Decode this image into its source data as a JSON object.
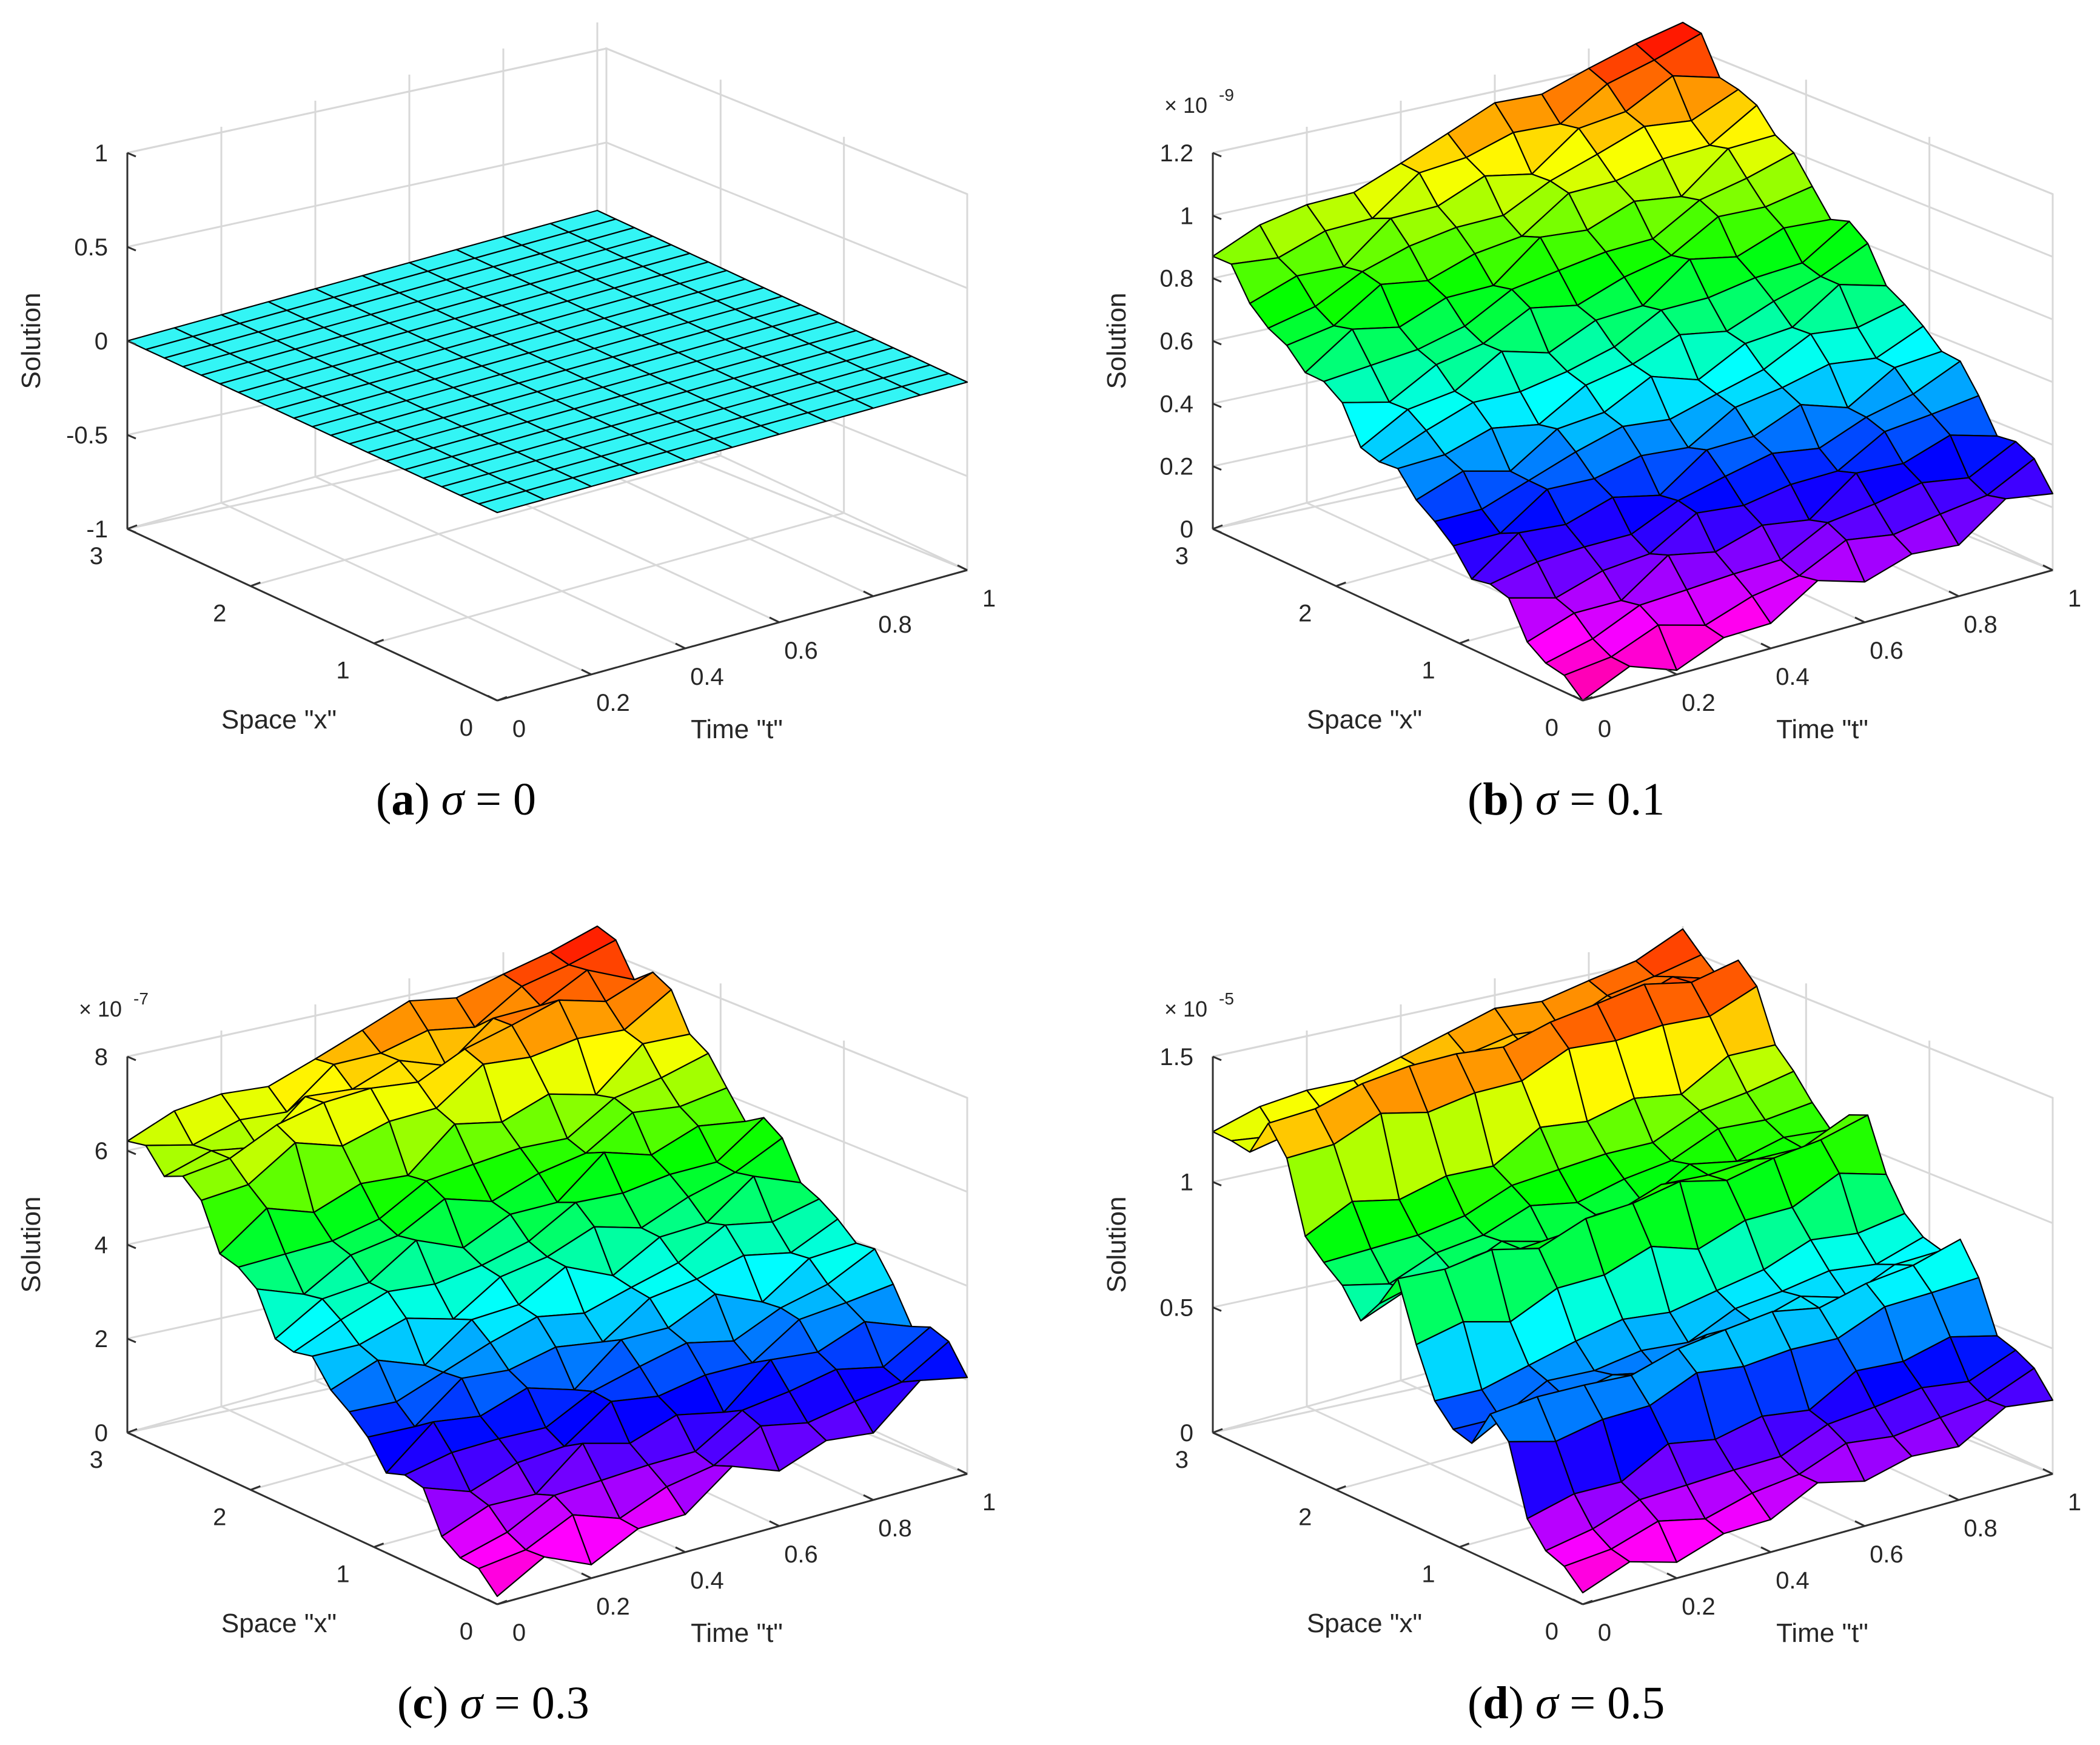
{
  "figure": {
    "captions": [
      {
        "letter": "a",
        "sigma": "σ",
        "eq": " = 0"
      },
      {
        "letter": "b",
        "sigma": "σ",
        "eq": " = 0.1"
      },
      {
        "letter": "c",
        "sigma": "σ",
        "eq": " = 0.3"
      },
      {
        "letter": "d",
        "sigma": "σ",
        "eq": " = 0.5"
      }
    ]
  },
  "colors": {
    "flat_surface": "#33f5f5",
    "grid": "#d8d8d8",
    "axis": "#303030",
    "mesh_edge": "#000000"
  },
  "chart_data": [
    {
      "type": "surface",
      "title": "(a) σ = 0",
      "xlabel": "Time \"t\"",
      "ylabel": "Space \"x\"",
      "zlabel": "Solution",
      "exponent": "",
      "xlim": [
        0,
        1
      ],
      "ylim": [
        0,
        3
      ],
      "zlim": [
        -1,
        1
      ],
      "xticks": [
        "0",
        "0.2",
        "0.4",
        "0.6",
        "0.8",
        "1"
      ],
      "yticks": [
        "0",
        "1",
        "2",
        "3"
      ],
      "zticks": [
        "-1",
        "-0.5",
        "0",
        "0.5",
        "1"
      ],
      "surface": {
        "kind": "flat",
        "z_value": 0,
        "rows": 21,
        "cols": 11,
        "color": "#33f5f5"
      }
    },
    {
      "type": "surface",
      "title": "(b) σ = 0.1",
      "xlabel": "Time \"t\"",
      "ylabel": "Space \"x\"",
      "zlabel": "Solution",
      "exponent": "-9",
      "xlim": [
        0,
        1
      ],
      "ylim": [
        0,
        3
      ],
      "zlim": [
        0,
        1.2
      ],
      "xticks": [
        "0",
        "0.2",
        "0.4",
        "0.6",
        "0.8",
        "1"
      ],
      "yticks": [
        "0",
        "1",
        "2",
        "3"
      ],
      "zticks": [
        "0",
        "0.2",
        "0.4",
        "0.6",
        "0.8",
        "1",
        "1.2"
      ],
      "surface": {
        "kind": "rough-ramp",
        "corner_values": [
          0,
          0.25,
          0.87,
          1.22
        ],
        "ripple": 0.05,
        "ridges": [],
        "rows": 21,
        "cols": 11
      }
    },
    {
      "type": "surface",
      "title": "(c) σ = 0.3",
      "xlabel": "Time \"t\"",
      "ylabel": "Space \"x\"",
      "zlabel": "Solution",
      "exponent": "-7",
      "xlim": [
        0,
        1
      ],
      "ylim": [
        0,
        3
      ],
      "zlim": [
        0,
        8
      ],
      "xticks": [
        "0",
        "0.2",
        "0.4",
        "0.6",
        "0.8",
        "1"
      ],
      "yticks": [
        "0",
        "1",
        "2",
        "3"
      ],
      "zticks": [
        "0",
        "2",
        "4",
        "6",
        "8"
      ],
      "surface": {
        "kind": "rough-ramp",
        "corner_values": [
          0.2,
          2.1,
          6.2,
          8.0
        ],
        "ripple": 0.4,
        "ridges": [
          {
            "x": 2.5,
            "height": 0.9
          }
        ],
        "rows": 21,
        "cols": 11
      }
    },
    {
      "type": "surface",
      "title": "(d) σ = 0.5",
      "xlabel": "Time \"t\"",
      "ylabel": "Space \"x\"",
      "zlabel": "Solution",
      "exponent": "-5",
      "xlim": [
        0,
        1
      ],
      "ylim": [
        0,
        3
      ],
      "zlim": [
        0,
        1.5
      ],
      "xticks": [
        "0",
        "0.2",
        "0.4",
        "0.6",
        "0.8",
        "1"
      ],
      "yticks": [
        "0",
        "1",
        "2",
        "3"
      ],
      "zticks": [
        "0",
        "0.5",
        "1",
        "1.5"
      ],
      "surface": {
        "kind": "rough-ramp",
        "corner_values": [
          0.05,
          0.3,
          1.2,
          1.45
        ],
        "ripple": 0.05,
        "ridges": [
          {
            "x": 2.5,
            "height": 0.35
          },
          {
            "x": 1.5,
            "height": 0.3
          },
          {
            "x": 0.7,
            "height": 0.25
          }
        ],
        "rows": 21,
        "cols": 11
      }
    }
  ]
}
